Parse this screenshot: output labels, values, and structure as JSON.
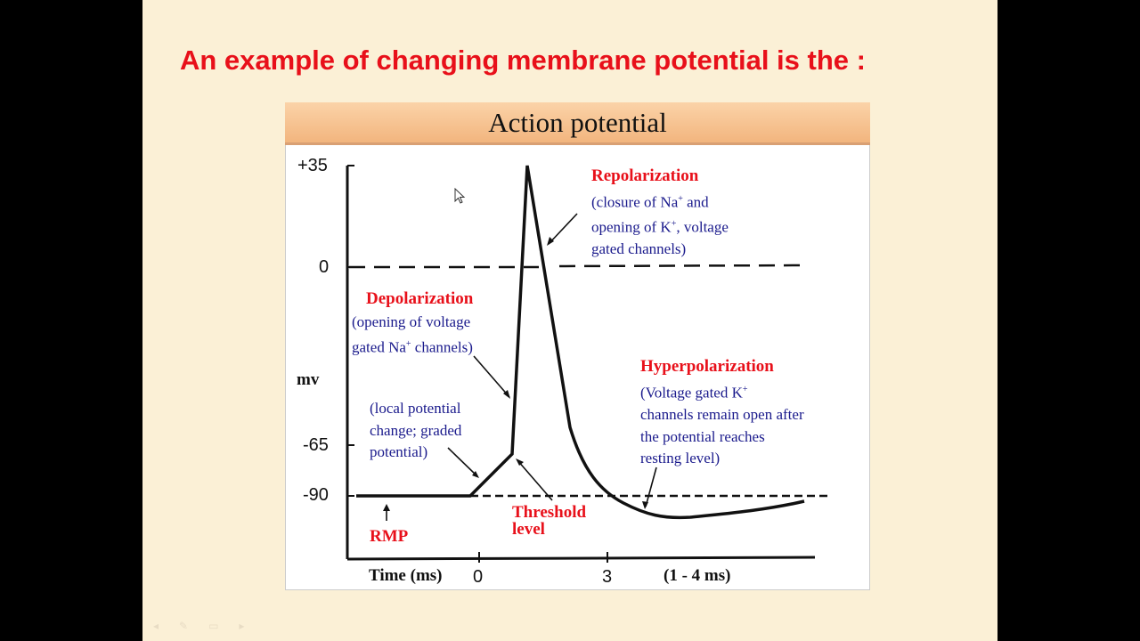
{
  "slide": {
    "title": "An example of changing membrane potential is the :",
    "diagram_header": "Action potential"
  },
  "chart_data": {
    "type": "line",
    "title": "Action potential",
    "ylabel": "mv",
    "xlabel": "Time (ms)",
    "y_ticks": [
      "+35",
      "0",
      "-65",
      "-90"
    ],
    "x_ticks": [
      "0",
      "3"
    ],
    "x_note": "(1 - 4 ms)",
    "reference_lines": [
      0,
      -90
    ],
    "annotations": {
      "repolarization": {
        "title": "Repolarization",
        "lines": [
          "(closure of Na",
          "+",
          " and",
          "opening of K",
          "+",
          ", voltage",
          "gated channels)"
        ]
      },
      "depolarization": {
        "title": "Depolarization",
        "lines": [
          "(opening of voltage",
          "gated Na",
          "+",
          " channels)"
        ]
      },
      "local": {
        "lines": [
          "(local potential",
          "change; graded",
          "potential)"
        ]
      },
      "threshold": {
        "title": "Threshold",
        "title2": "level"
      },
      "rmp": {
        "title": "RMP"
      },
      "hyperpolarization": {
        "title": "Hyperpolarization",
        "lines": [
          "(Voltage gated K",
          "+",
          "channels remain open after",
          "the potential reaches",
          "resting level)"
        ]
      }
    },
    "colors": {
      "label_red": "#e8101a",
      "label_blue": "#1a1a8c",
      "header": "#f2b57e",
      "background": "#fbf0d6"
    }
  }
}
